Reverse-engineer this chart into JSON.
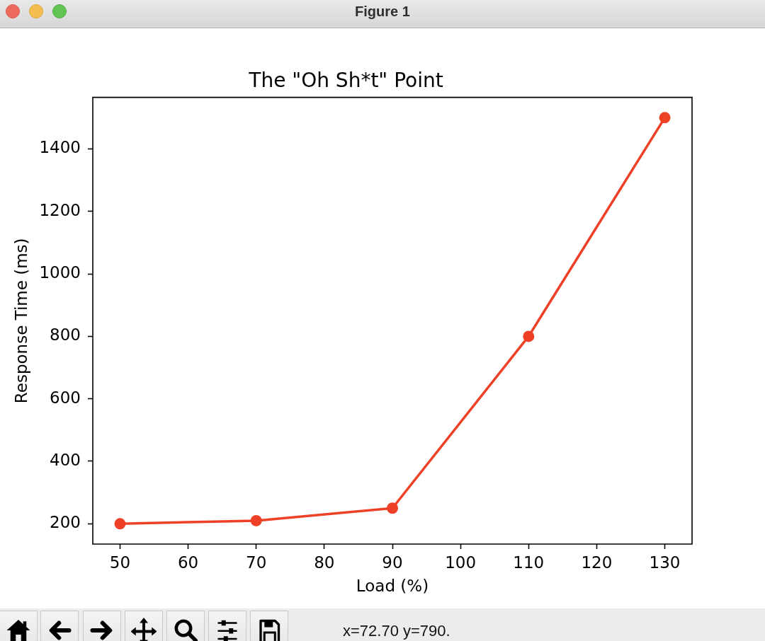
{
  "chart_data": {
    "type": "line",
    "title": "The \"Oh Sh*t\" Point",
    "xlabel": "Load (%)",
    "ylabel": "Response Time (ms)",
    "x": [
      50,
      70,
      90,
      110,
      130
    ],
    "series": [
      {
        "color": "#ee4027",
        "values": [
          200,
          210,
          250,
          800,
          1500
        ]
      }
    ],
    "xlim": [
      46,
      134
    ],
    "ylim": [
      135,
      1565
    ],
    "xticks": [
      50,
      60,
      70,
      80,
      90,
      100,
      110,
      120,
      130
    ],
    "yticks": [
      200,
      400,
      600,
      800,
      1000,
      1200,
      1400
    ],
    "grid": false,
    "legend": false,
    "marker": "circle",
    "line_style": "solid",
    "annotations": [
      "Figure 1",
      "x=72.70 y=790."
    ]
  }
}
